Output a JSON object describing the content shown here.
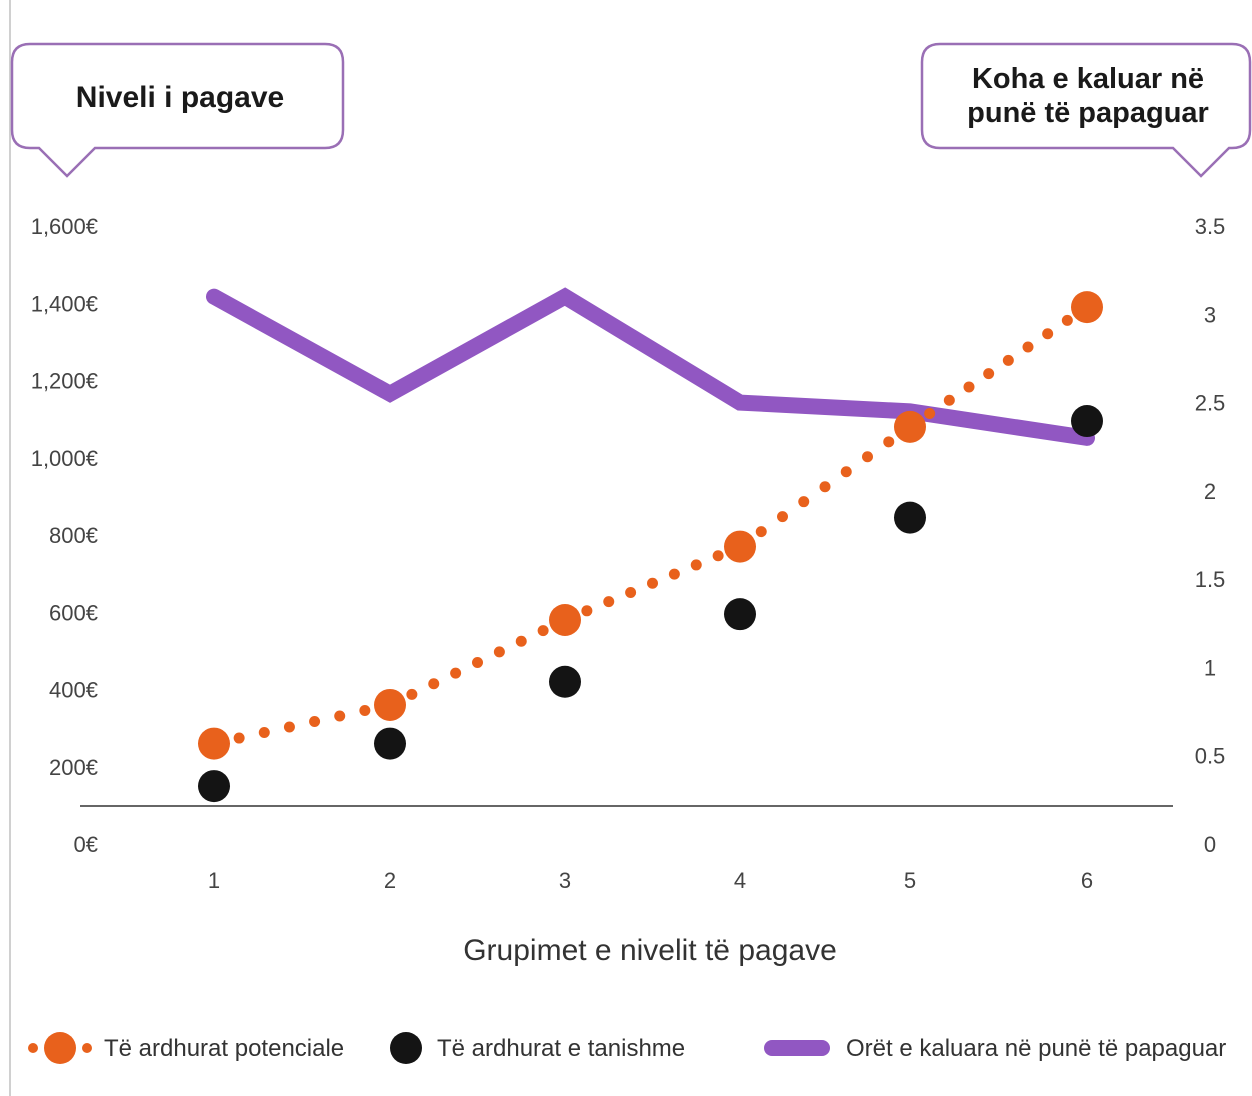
{
  "chart_data": {
    "type": "line",
    "left_axis_title": "Niveli i pagave",
    "right_axis_title": [
      "Koha e kaluar në",
      "punë të papaguar"
    ],
    "xlabel": "Grupimet e nivelit të pagave",
    "categories": [
      "1",
      "2",
      "3",
      "4",
      "5",
      "6"
    ],
    "left_ticks": [
      "0€",
      "200€",
      "400€",
      "600€",
      "800€",
      "1,000€",
      "1,200€",
      "1,400€",
      "1,600€"
    ],
    "left_tick_values": [
      0,
      200,
      400,
      600,
      800,
      1000,
      1200,
      1400,
      1600
    ],
    "right_ticks": [
      "0",
      "0.5",
      "1",
      "1.5",
      "2",
      "2.5",
      "3",
      "3.5"
    ],
    "right_tick_values": [
      0,
      0.5,
      1,
      1.5,
      2,
      2.5,
      3,
      3.5
    ],
    "ylim_left": [
      0,
      1600
    ],
    "ylim_right": [
      0,
      3.5
    ],
    "series": [
      {
        "name": "Të ardhurat potenciale",
        "axis": "left",
        "style": "dotted-markers",
        "color": "#e8611c",
        "values": [
          260,
          360,
          580,
          770,
          1080,
          1390
        ]
      },
      {
        "name": "Të ardhurat e tanishme",
        "axis": "left",
        "style": "markers",
        "color": "#141414",
        "values": [
          150,
          260,
          420,
          595,
          845,
          1095
        ]
      },
      {
        "name": "Orët e kaluara në punë të papaguar",
        "axis": "right",
        "style": "thick-line",
        "color": "#9157c2",
        "values": [
          3.1,
          2.55,
          3.1,
          2.5,
          2.45,
          2.3
        ]
      }
    ],
    "legend_position": "bottom"
  }
}
